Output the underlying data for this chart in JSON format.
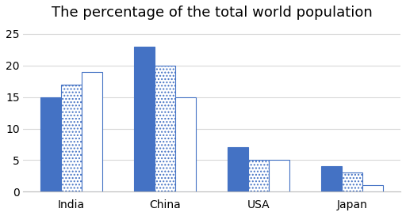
{
  "title": "The percentage of the total world population",
  "categories": [
    "India",
    "China",
    "USA",
    "Japan"
  ],
  "series": {
    "1950": [
      15,
      23,
      7,
      4
    ],
    "2002": [
      17,
      20,
      5,
      3
    ],
    "2050": [
      19,
      15,
      5,
      1
    ]
  },
  "bar_width": 0.22,
  "ylim": [
    0,
    26
  ],
  "yticks": [
    0,
    5,
    10,
    15,
    20,
    25
  ],
  "bar_styles": {
    "1950": {
      "facecolor": "#4472C4",
      "edgecolor": "#4472C4",
      "hatch": ""
    },
    "2002": {
      "facecolor": "white",
      "edgecolor": "#4472C4",
      "hatch": "...."
    },
    "2050": {
      "facecolor": "white",
      "edgecolor": "#4472C4",
      "hatch": "===="
    }
  },
  "background_color": "#ffffff",
  "title_fontsize": 13,
  "tick_fontsize": 10,
  "grid_color": "#d9d9d9",
  "spine_color": "#bbbbbb"
}
